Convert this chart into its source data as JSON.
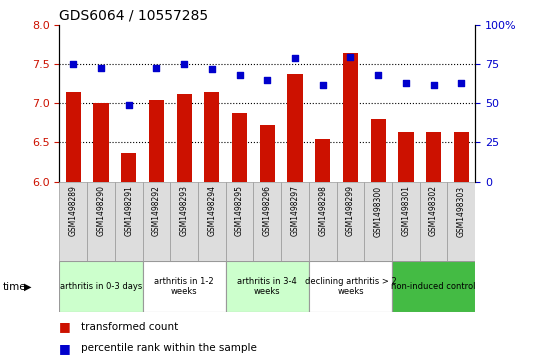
{
  "title": "GDS6064 / 10557285",
  "samples": [
    "GSM1498289",
    "GSM1498290",
    "GSM1498291",
    "GSM1498292",
    "GSM1498293",
    "GSM1498294",
    "GSM1498295",
    "GSM1498296",
    "GSM1498297",
    "GSM1498298",
    "GSM1498299",
    "GSM1498300",
    "GSM1498301",
    "GSM1498302",
    "GSM1498303"
  ],
  "bar_values": [
    7.15,
    7.0,
    6.37,
    7.05,
    7.12,
    7.15,
    6.88,
    6.73,
    7.38,
    6.55,
    7.65,
    6.8,
    6.63,
    6.63,
    6.63
  ],
  "dot_values": [
    75,
    73,
    49,
    73,
    75,
    72,
    68,
    65,
    79,
    62,
    80,
    68,
    63,
    62,
    63
  ],
  "ylim_left": [
    6.0,
    8.0
  ],
  "ylim_right": [
    0,
    100
  ],
  "yticks_left": [
    6.0,
    6.5,
    7.0,
    7.5,
    8.0
  ],
  "yticks_right": [
    0,
    25,
    50,
    75,
    100
  ],
  "bar_color": "#cc1100",
  "dot_color": "#0000cc",
  "groups": [
    {
      "label": "arthritis in 0-3 days",
      "start": 0,
      "end": 3,
      "color": "#ccffcc"
    },
    {
      "label": "arthritis in 1-2\nweeks",
      "start": 3,
      "end": 6,
      "color": "#ffffff"
    },
    {
      "label": "arthritis in 3-4\nweeks",
      "start": 6,
      "end": 9,
      "color": "#ccffcc"
    },
    {
      "label": "declining arthritis > 2\nweeks",
      "start": 9,
      "end": 12,
      "color": "#ffffff"
    },
    {
      "label": "non-induced control",
      "start": 12,
      "end": 15,
      "color": "#44bb44"
    }
  ],
  "time_label": "time",
  "legend_bar_label": "transformed count",
  "legend_dot_label": "percentile rank within the sample"
}
